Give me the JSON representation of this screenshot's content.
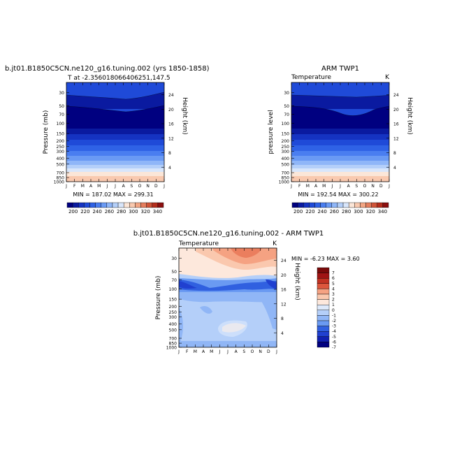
{
  "months": [
    "J",
    "F",
    "M",
    "A",
    "M",
    "J",
    "J",
    "A",
    "S",
    "O",
    "N",
    "D",
    "J"
  ],
  "pressure_ticks": [
    "30",
    "50",
    "70",
    "100",
    "150",
    "200",
    "250",
    "300",
    "400",
    "500",
    "700",
    "850",
    "1000"
  ],
  "height_ticks": [
    "4",
    "8",
    "12",
    "16",
    "20",
    "24"
  ],
  "colors": {
    "abs_palette": [
      "#000080",
      "#0a1aa0",
      "#1533c2",
      "#1f4ad8",
      "#2f62e6",
      "#4a7ef0",
      "#6a9af4",
      "#8fb6f8",
      "#b4cff9",
      "#d8e6fb",
      "#fbe6d8",
      "#f9c9af",
      "#f3a684",
      "#e57e5e",
      "#d05438",
      "#b42d1c",
      "#8c0f0f"
    ],
    "diff_palette": [
      "#000080",
      "#1020b0",
      "#2040d0",
      "#3060e0",
      "#4a7cec",
      "#6a9af2",
      "#90b6f6",
      "#b4cff9",
      "#dde9fb",
      "#fde8dc",
      "#fac8ae",
      "#f5a282",
      "#eb7e5e",
      "#dc563c",
      "#c23222",
      "#a01414",
      "#7a0a0a"
    ]
  },
  "chart_data": [
    {
      "type": "heatmap",
      "title": "b.jt01.B1850C5CN.ne120_g16.tuning.002 (yrs 1850-1858)",
      "subtitle": "T at -2.356018066406251,147.5",
      "ylabel": "Pressure (mb)",
      "y2label": "Height (km)",
      "stats": "MIN = 187.02 MAX = 299.31",
      "colorbar_labels": [
        "200",
        "220",
        "240",
        "260",
        "280",
        "300",
        "320",
        "340"
      ],
      "levels": [
        190,
        350,
        10
      ],
      "units": "K",
      "ylim": [
        1000,
        20
      ]
    },
    {
      "type": "heatmap",
      "title": "ARM TWP1",
      "subtitle_left": "Temperature",
      "subtitle_right": "K",
      "ylabel": "pressure level",
      "y2label": "Height (km)",
      "stats": "MIN = 192.54 MAX = 300.22",
      "colorbar_labels": [
        "200",
        "220",
        "240",
        "260",
        "280",
        "300",
        "320",
        "340"
      ],
      "levels": [
        190,
        350,
        10
      ],
      "units": "K",
      "ylim": [
        1000,
        20
      ]
    },
    {
      "type": "heatmap",
      "title": "b.jt01.B1850C5CN.ne120_g16.tuning.002 - ARM TWP1",
      "subtitle_left": "Temperature",
      "subtitle_right": "K",
      "ylabel": "Pressure (mb)",
      "y2label": "Height (km)",
      "stats": "MIN = -6.23 MAX = 3.60",
      "colorbar_labels": [
        "7",
        "6",
        "5",
        "4",
        "3",
        "2",
        "1",
        "0",
        "-1",
        "-2",
        "-3",
        "-4",
        "-5",
        "-6",
        "-7"
      ],
      "levels": [
        -7,
        7,
        1
      ],
      "units": "K",
      "ylim": [
        1000,
        20
      ]
    }
  ]
}
